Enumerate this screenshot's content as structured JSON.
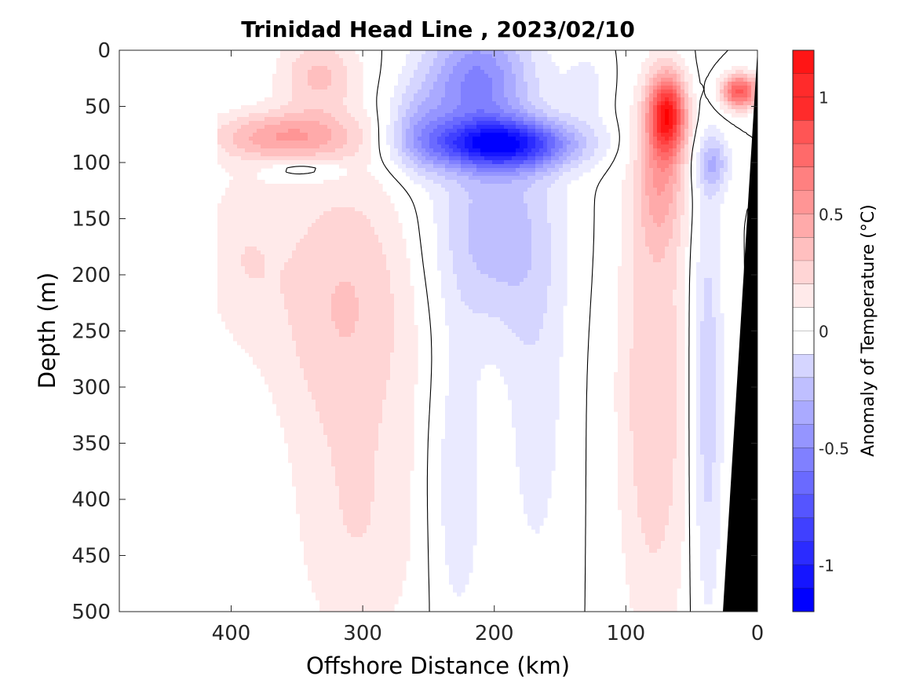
{
  "chart_data": {
    "type": "heatmap",
    "title": "Trinidad Head Line , 2023/02/10",
    "xlabel": "Offshore Distance (km)",
    "ylabel": "Depth (m)",
    "x_reversed": true,
    "y_reversed": true,
    "xlim": [
      485,
      0
    ],
    "ylim": [
      0,
      500
    ],
    "x_ticks": [
      400,
      300,
      200,
      100,
      0
    ],
    "y_ticks": [
      0,
      50,
      100,
      150,
      200,
      250,
      300,
      350,
      400,
      450,
      500
    ],
    "colorbar": {
      "label": "Anomaly of Temperature (°C)",
      "range": [
        -1.2,
        1.2
      ],
      "step": 0.1,
      "ticks": [
        1,
        0.5,
        0,
        -0.5,
        -1
      ],
      "tick_labels": [
        "1",
        "0.5",
        "0",
        "-0.5",
        "-1"
      ],
      "colors": {
        "negative": "#0000ff",
        "zero": "#ffffff",
        "positive": "#ff0000"
      }
    },
    "contour_level": 0,
    "grid": false,
    "features": [
      {
        "name": "warm core",
        "x": 360,
        "y": 75,
        "value": 0.45
      },
      {
        "name": "cold lens",
        "x": 195,
        "y": 82,
        "value": -1.0
      },
      {
        "name": "cold near-surface",
        "x": 215,
        "y": 25,
        "value": -0.6
      },
      {
        "name": "warm nearshore surface",
        "x": 70,
        "y": 55,
        "value": 1.0
      },
      {
        "name": "warm shelf surface",
        "x": 15,
        "y": 35,
        "value": 0.85
      },
      {
        "name": "warm column",
        "x": 315,
        "y": 220,
        "value": 0.3
      },
      {
        "name": "warm nearshore column",
        "x": 80,
        "y": 300,
        "value": 0.3
      },
      {
        "name": "cold slope",
        "x": 40,
        "y": 300,
        "value": -0.3
      }
    ]
  }
}
